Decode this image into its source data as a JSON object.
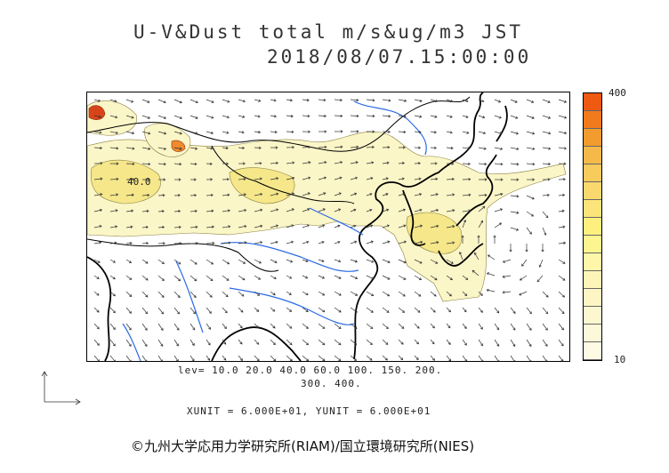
{
  "title": {
    "line1": "U-V&Dust total m/s&ug/m3 JST",
    "line2": "2018/08/07.15:00:00"
  },
  "map": {
    "contour_label": "40.0",
    "colors": {
      "land_line": "#000000",
      "river": "#2a6ae6",
      "vector": "#333333",
      "dust_low": "#fbf6c8",
      "dust_mid": "#f5e78a",
      "dust_high": "#ef8a2e",
      "dust_max": "#d8441a"
    }
  },
  "colorbar": {
    "max_label": "400",
    "min_label": "10",
    "segments": [
      "#ee5a12",
      "#f07a1c",
      "#f29b2e",
      "#f5b94a",
      "#f7cb5c",
      "#f9d96d",
      "#fbe57a",
      "#fdf07e",
      "#fdf590",
      "#fef6a8",
      "#fdf5b8",
      "#fdf5c4",
      "#fdf7d0",
      "#fdf8da",
      "#fefae4"
    ]
  },
  "levels": {
    "line1": "lev= 10.0 20.0 40.0 60.0 100. 150. 200.",
    "line2": "300. 400."
  },
  "units": "XUNIT = 6.000E+01, YUNIT = 6.000E+01",
  "copyright": "©九州大学応用力学研究所(RIAM)/国立環境研究所(NIES)"
}
